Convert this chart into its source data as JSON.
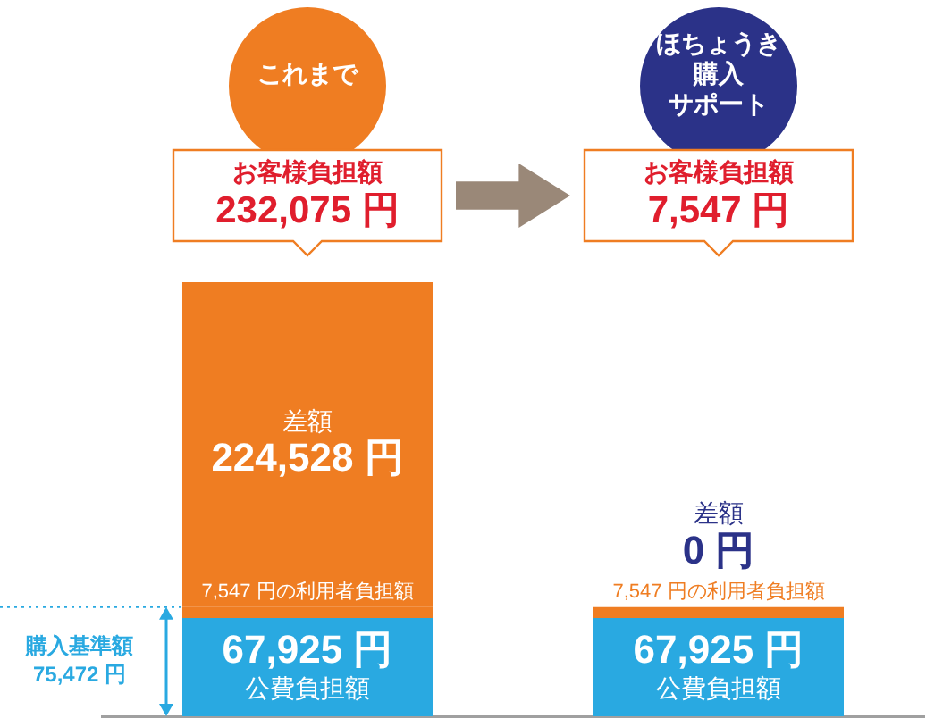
{
  "chart_data": {
    "type": "bar",
    "stacked": true,
    "categories": [
      "これまで",
      "ほちょうき購入サポート"
    ],
    "series": [
      {
        "name": "公費負担額",
        "color": "#29a9e1",
        "values": [
          67925,
          67925
        ],
        "value_labels": [
          "67,925 円",
          "67,925 円"
        ]
      },
      {
        "color": "#ef7d22",
        "values": [
          7547,
          7547
        ],
        "value_labels": [
          "7,547 円の利用者負担額",
          "7,547 円の利用者負担額"
        ]
      },
      {
        "name": "差額",
        "colors": [
          "#ef7d22",
          "#2b3288"
        ],
        "values": [
          224528,
          0
        ],
        "value_labels": [
          "224,528 円",
          "0 円"
        ]
      }
    ],
    "annotations": [
      "お客様負担額\n232,075 円",
      "お客様負担額\n7,547 円"
    ],
    "ref_lines": [
      {
        "axis": "y",
        "value": 75472,
        "label": "購入基準額\n75,472 円",
        "line_style": "dotted",
        "color": "#29a9e1"
      }
    ]
  }
}
